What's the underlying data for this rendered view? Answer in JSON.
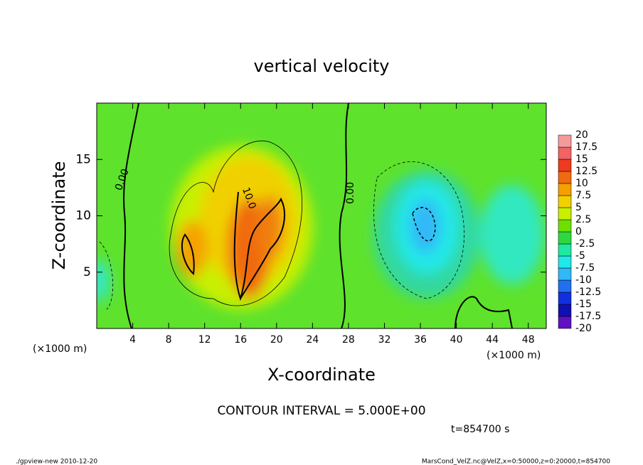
{
  "chart_data": {
    "type": "contour",
    "title": "vertical velocity",
    "xlabel": "X-coordinate",
    "ylabel": "Z-coordinate",
    "xunit": "(×1000 m)",
    "yunit": "(×1000 m)",
    "xlim": [
      0,
      50
    ],
    "ylim": [
      0,
      20
    ],
    "xticks": [
      4,
      8,
      12,
      16,
      20,
      24,
      28,
      32,
      36,
      40,
      44,
      48
    ],
    "yticks": [
      5,
      10,
      15
    ],
    "contour_labels": [
      "0.00",
      "10.0",
      "0.00"
    ],
    "colorbar": {
      "levels": [
        -20,
        -17.5,
        -15,
        -12.5,
        -10,
        -7.5,
        -5,
        -2.5,
        0,
        2.5,
        5,
        7.5,
        10,
        12.5,
        15,
        17.5,
        20
      ],
      "colors": [
        "#6010c0",
        "#1010b0",
        "#1030e0",
        "#2070f0",
        "#30b8f8",
        "#20e8e8",
        "#20e8a0",
        "#30d840",
        "#6ee000",
        "#c8f000",
        "#f0d000",
        "#f5a000",
        "#f06a10",
        "#ee3a1e",
        "#f06464",
        "#f59a9a"
      ]
    },
    "annotation": "CONTOUR INTERVAL = 5.000E+00",
    "time_label": "t=854700 s",
    "footer_left": "./gpview-new  2010-12-20",
    "footer_right": "MarsCond_VelZ.nc@VelZ,x=0:50000,z=0:20000,t=854700"
  }
}
